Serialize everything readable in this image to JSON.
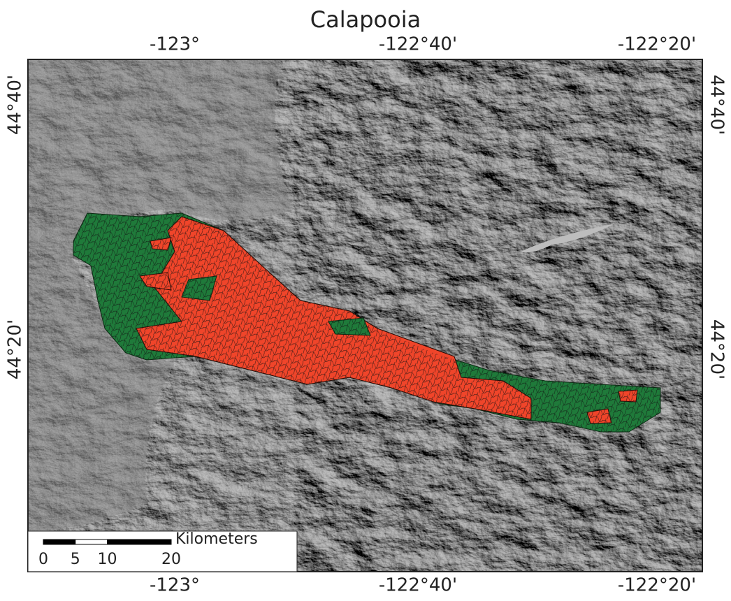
{
  "title": "Calapooia",
  "graticule": {
    "top": [
      "-123°",
      "-122°40'",
      "-122°20'"
    ],
    "bottom": [
      "-123°",
      "-122°40'",
      "-122°20'"
    ],
    "left": [
      "44°40'",
      "44°20'"
    ],
    "right": [
      "44°40'",
      "44°20'"
    ]
  },
  "scale_bar": {
    "unit": "Kilometers",
    "ticks": [
      0,
      5,
      10,
      20
    ]
  }
}
